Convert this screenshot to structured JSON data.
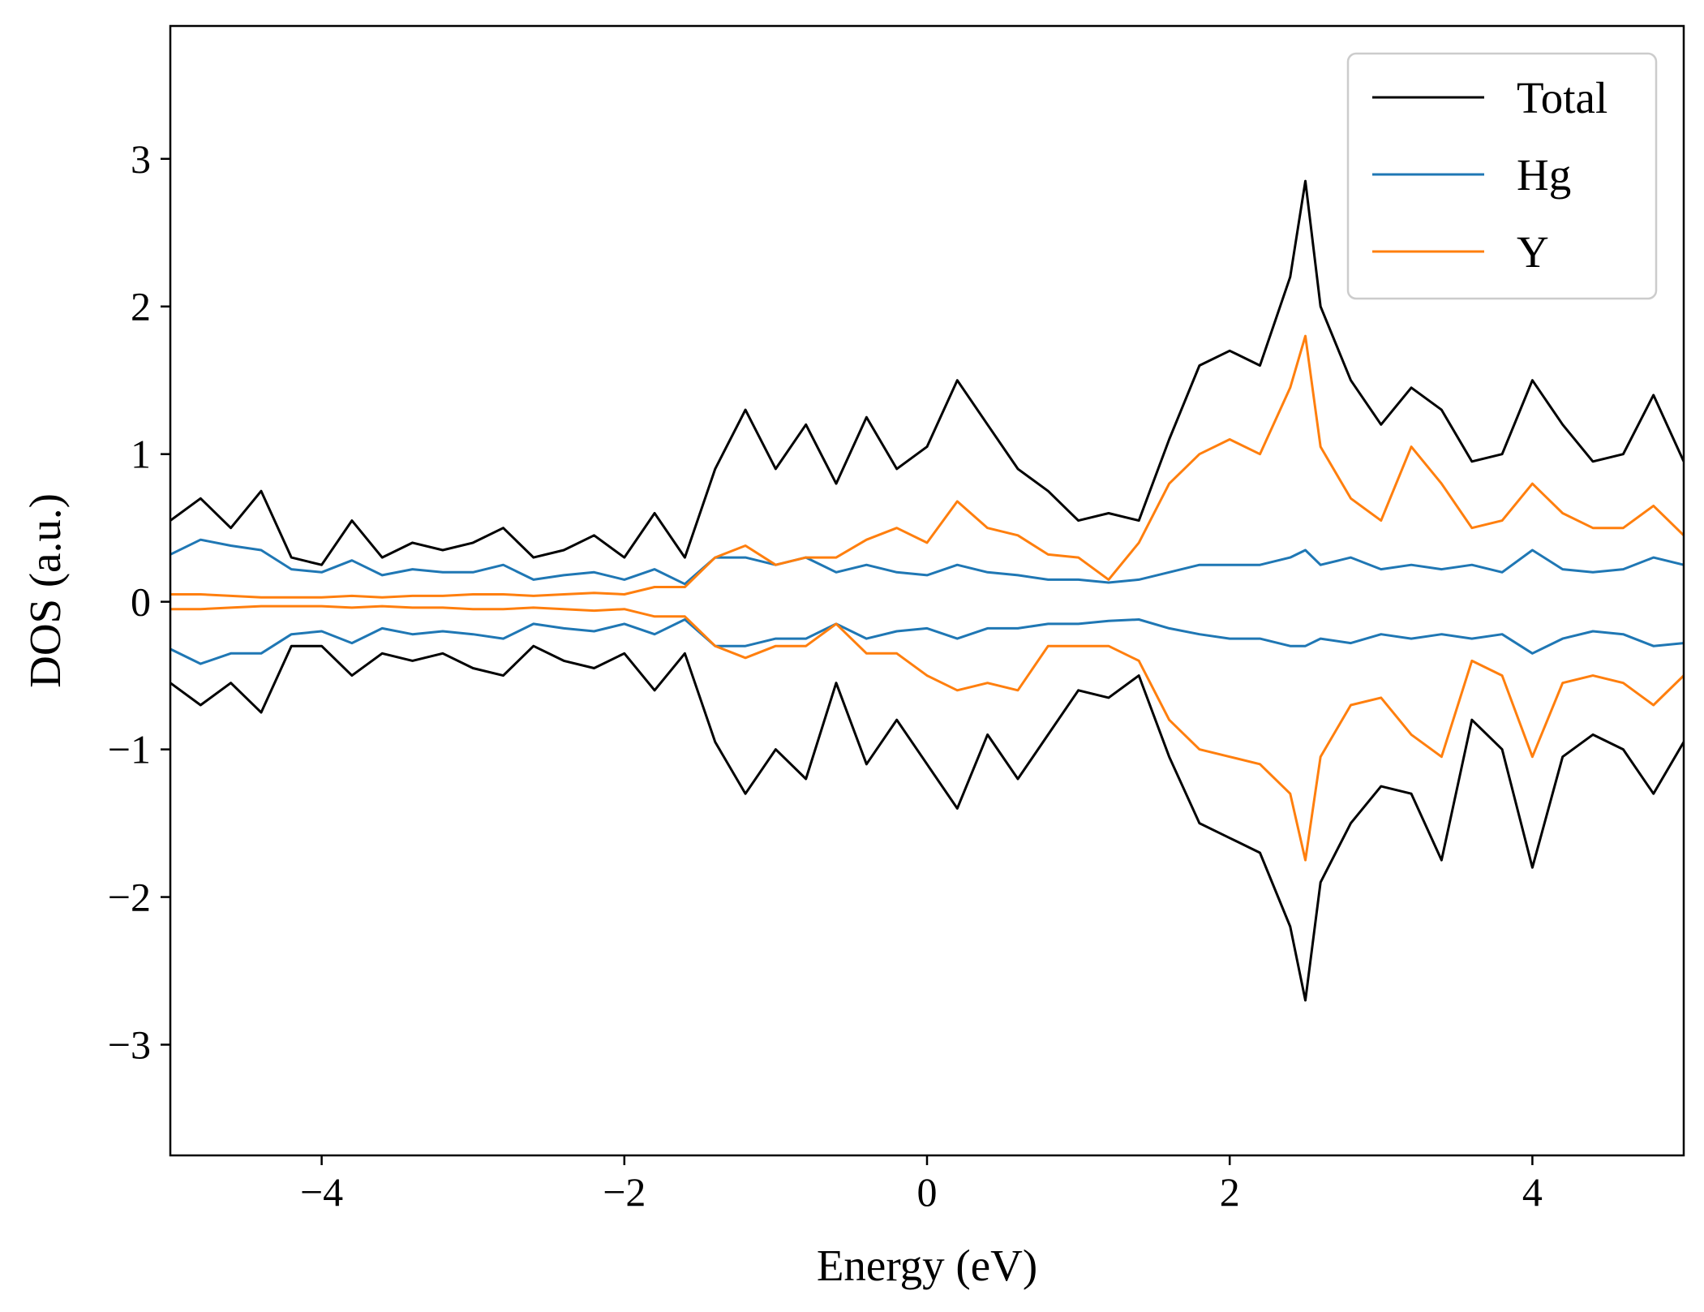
{
  "chart_data": {
    "type": "line",
    "xlabel": "Energy (eV)",
    "ylabel": "DOS (a.u.)",
    "xlim": [
      -5,
      5
    ],
    "ylim": [
      -3.75,
      3.9
    ],
    "xticks": [
      -4,
      -2,
      0,
      2,
      4
    ],
    "xtick_labels": [
      "−4",
      "−2",
      "0",
      "2",
      "4"
    ],
    "yticks": [
      -3,
      -2,
      -1,
      0,
      1,
      2,
      3
    ],
    "ytick_labels": [
      "−3",
      "−2",
      "−1",
      "0",
      "1",
      "2",
      "3"
    ],
    "grid": false,
    "legend_position": "top-right",
    "x": [
      -5.0,
      -4.8,
      -4.6,
      -4.4,
      -4.2,
      -4.0,
      -3.8,
      -3.6,
      -3.4,
      -3.2,
      -3.0,
      -2.8,
      -2.6,
      -2.4,
      -2.2,
      -2.0,
      -1.8,
      -1.6,
      -1.4,
      -1.2,
      -1.0,
      -0.8,
      -0.6,
      -0.4,
      -0.2,
      0.0,
      0.2,
      0.4,
      0.6,
      0.8,
      1.0,
      1.2,
      1.4,
      1.6,
      1.8,
      2.0,
      2.2,
      2.4,
      2.5,
      2.6,
      2.8,
      3.0,
      3.2,
      3.4,
      3.6,
      3.8,
      4.0,
      4.2,
      4.4,
      4.6,
      4.8,
      5.0
    ],
    "series": [
      {
        "name": "Total",
        "color": "#000000",
        "up": [
          0.55,
          0.7,
          0.5,
          0.75,
          0.3,
          0.25,
          0.55,
          0.3,
          0.4,
          0.35,
          0.4,
          0.5,
          0.3,
          0.35,
          0.45,
          0.3,
          0.6,
          0.3,
          0.9,
          1.3,
          0.9,
          1.2,
          0.8,
          1.25,
          0.9,
          1.05,
          1.5,
          1.2,
          0.9,
          0.75,
          0.55,
          0.6,
          0.55,
          1.1,
          1.6,
          1.7,
          1.6,
          2.2,
          2.85,
          2.0,
          1.5,
          1.2,
          1.45,
          1.3,
          0.95,
          1.0,
          1.5,
          1.2,
          0.95,
          1.0,
          1.4,
          0.95
        ],
        "down": [
          -0.55,
          -0.7,
          -0.55,
          -0.75,
          -0.3,
          -0.3,
          -0.5,
          -0.35,
          -0.4,
          -0.35,
          -0.45,
          -0.5,
          -0.3,
          -0.4,
          -0.45,
          -0.35,
          -0.6,
          -0.35,
          -0.95,
          -1.3,
          -1.0,
          -1.2,
          -0.55,
          -1.1,
          -0.8,
          -1.1,
          -1.4,
          -0.9,
          -1.2,
          -0.9,
          -0.6,
          -0.65,
          -0.5,
          -1.05,
          -1.5,
          -1.6,
          -1.7,
          -2.2,
          -2.7,
          -1.9,
          -1.5,
          -1.25,
          -1.3,
          -1.75,
          -0.8,
          -1.0,
          -1.8,
          -1.05,
          -0.9,
          -1.0,
          -1.3,
          -0.95
        ]
      },
      {
        "name": "Hg",
        "color": "#1f77b4",
        "up": [
          0.32,
          0.42,
          0.38,
          0.35,
          0.22,
          0.2,
          0.28,
          0.18,
          0.22,
          0.2,
          0.2,
          0.25,
          0.15,
          0.18,
          0.2,
          0.15,
          0.22,
          0.12,
          0.3,
          0.3,
          0.25,
          0.3,
          0.2,
          0.25,
          0.2,
          0.18,
          0.25,
          0.2,
          0.18,
          0.15,
          0.15,
          0.13,
          0.15,
          0.2,
          0.25,
          0.25,
          0.25,
          0.3,
          0.35,
          0.25,
          0.3,
          0.22,
          0.25,
          0.22,
          0.25,
          0.2,
          0.35,
          0.22,
          0.2,
          0.22,
          0.3,
          0.25
        ],
        "down": [
          -0.32,
          -0.42,
          -0.35,
          -0.35,
          -0.22,
          -0.2,
          -0.28,
          -0.18,
          -0.22,
          -0.2,
          -0.22,
          -0.25,
          -0.15,
          -0.18,
          -0.2,
          -0.15,
          -0.22,
          -0.12,
          -0.3,
          -0.3,
          -0.25,
          -0.25,
          -0.15,
          -0.25,
          -0.2,
          -0.18,
          -0.25,
          -0.18,
          -0.18,
          -0.15,
          -0.15,
          -0.13,
          -0.12,
          -0.18,
          -0.22,
          -0.25,
          -0.25,
          -0.3,
          -0.3,
          -0.25,
          -0.28,
          -0.22,
          -0.25,
          -0.22,
          -0.25,
          -0.22,
          -0.35,
          -0.25,
          -0.2,
          -0.22,
          -0.3,
          -0.28
        ]
      },
      {
        "name": "Y",
        "color": "#ff7f0e",
        "up": [
          0.05,
          0.05,
          0.04,
          0.03,
          0.03,
          0.03,
          0.04,
          0.03,
          0.04,
          0.04,
          0.05,
          0.05,
          0.04,
          0.05,
          0.06,
          0.05,
          0.1,
          0.1,
          0.3,
          0.38,
          0.25,
          0.3,
          0.3,
          0.42,
          0.5,
          0.4,
          0.68,
          0.5,
          0.45,
          0.32,
          0.3,
          0.15,
          0.4,
          0.8,
          1.0,
          1.1,
          1.0,
          1.45,
          1.8,
          1.05,
          0.7,
          0.55,
          1.05,
          0.8,
          0.5,
          0.55,
          0.8,
          0.6,
          0.5,
          0.5,
          0.65,
          0.45
        ],
        "down": [
          -0.05,
          -0.05,
          -0.04,
          -0.03,
          -0.03,
          -0.03,
          -0.04,
          -0.03,
          -0.04,
          -0.04,
          -0.05,
          -0.05,
          -0.04,
          -0.05,
          -0.06,
          -0.05,
          -0.1,
          -0.1,
          -0.3,
          -0.38,
          -0.3,
          -0.3,
          -0.15,
          -0.35,
          -0.35,
          -0.5,
          -0.6,
          -0.55,
          -0.6,
          -0.3,
          -0.3,
          -0.3,
          -0.4,
          -0.8,
          -1.0,
          -1.05,
          -1.1,
          -1.3,
          -1.75,
          -1.05,
          -0.7,
          -0.65,
          -0.9,
          -1.05,
          -0.4,
          -0.5,
          -1.05,
          -0.55,
          -0.5,
          -0.55,
          -0.7,
          -0.5
        ]
      }
    ]
  }
}
